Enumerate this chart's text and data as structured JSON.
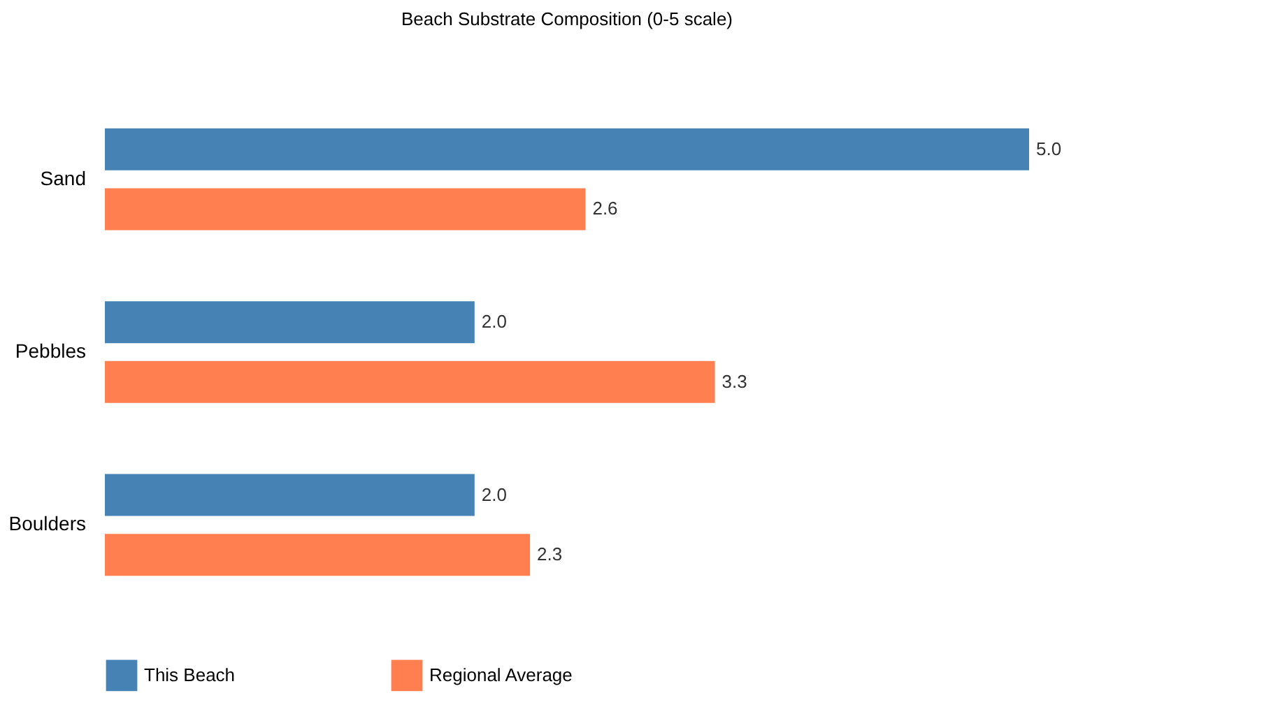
{
  "chart_data": {
    "type": "bar",
    "orientation": "horizontal",
    "title": "Beach Substrate Composition (0-5 scale)",
    "categories": [
      "Sand",
      "Pebbles",
      "Boulders"
    ],
    "series": [
      {
        "name": "This Beach",
        "color": "#4682b4",
        "values": [
          5.0,
          2.0,
          2.0
        ],
        "value_labels": [
          "5.0",
          "2.0",
          "2.0"
        ]
      },
      {
        "name": "Regional Average",
        "color": "#ff7f50",
        "values": [
          2.6,
          3.3,
          2.3
        ],
        "value_labels": [
          "2.6",
          "3.3",
          "2.3"
        ]
      }
    ],
    "xlim": [
      0,
      5
    ],
    "legend": "bottom",
    "grid": false,
    "tick_labels": "y"
  }
}
